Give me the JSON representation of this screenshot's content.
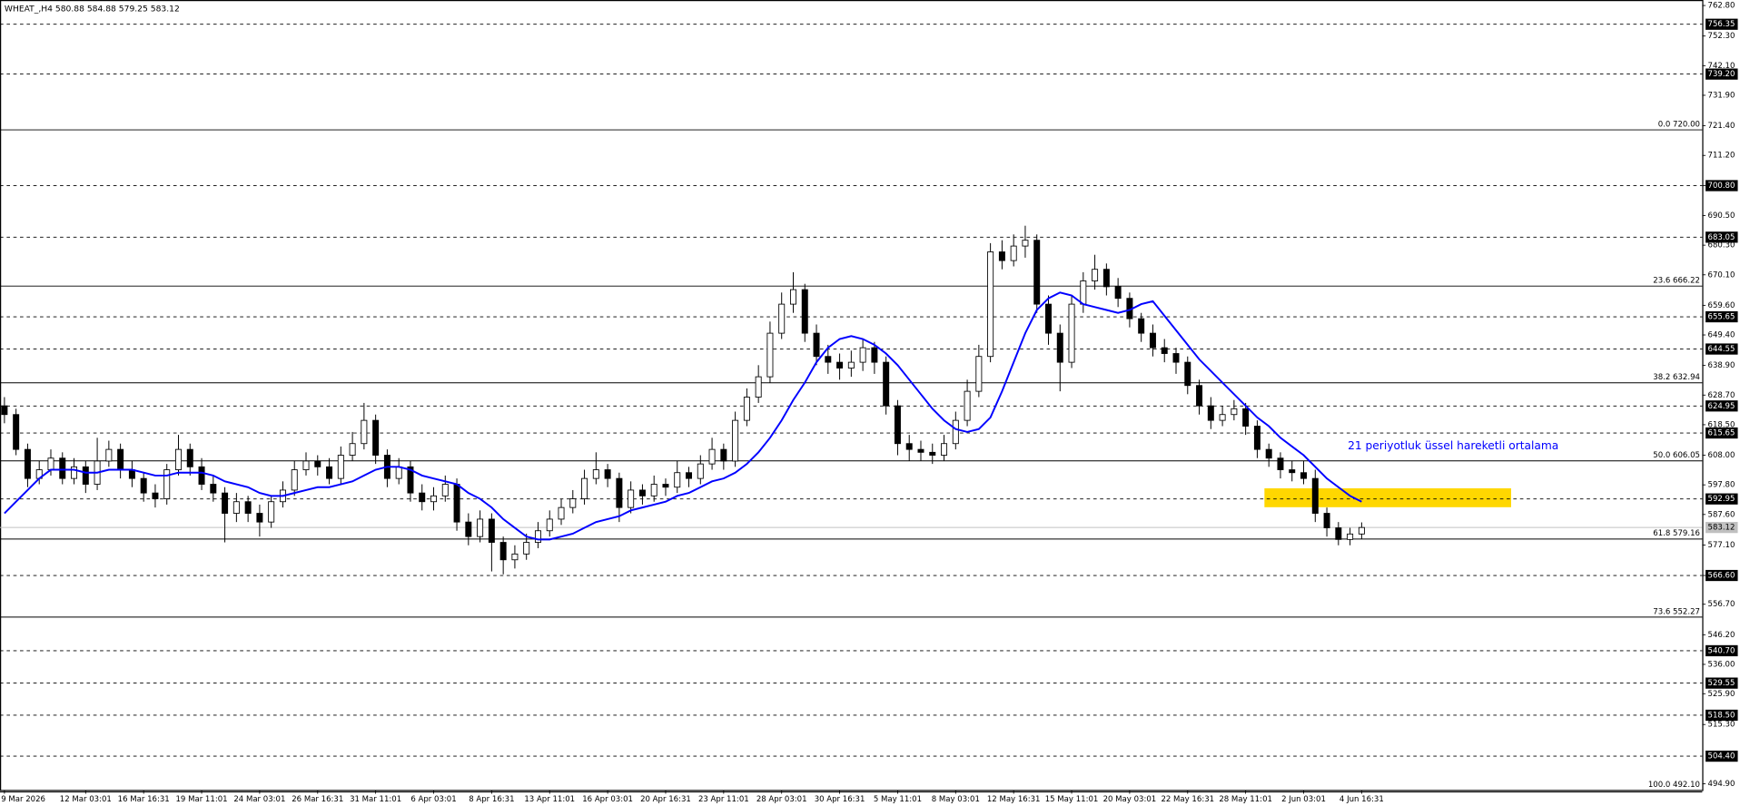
{
  "chart_data": {
    "type": "candlestick",
    "title": "WHEAT_,H4 580.88 584.88 579.25 583.12",
    "categories": [
      "9 Mar 2026",
      null,
      null,
      null,
      null,
      null,
      null,
      "12 Mar 03:01",
      null,
      null,
      null,
      null,
      "16 Mar 16:31",
      null,
      null,
      null,
      null,
      "19 Mar 11:01",
      null,
      null,
      null,
      null,
      "24 Mar 03:01",
      null,
      null,
      null,
      null,
      "26 Mar 16:31",
      null,
      null,
      null,
      null,
      "31 Mar 11:01",
      null,
      null,
      null,
      null,
      "6 Apr 03:01",
      null,
      null,
      null,
      null,
      "8 Apr 16:31",
      null,
      null,
      null,
      null,
      "13 Apr 11:01",
      null,
      null,
      null,
      null,
      "16 Apr 03:01",
      null,
      null,
      null,
      null,
      "20 Apr 16:31",
      null,
      null,
      null,
      null,
      "23 Apr 11:01",
      null,
      null,
      null,
      null,
      "28 Apr 03:01",
      null,
      null,
      null,
      null,
      "30 Apr 16:31",
      null,
      null,
      null,
      null,
      "5 May 11:01",
      null,
      null,
      null,
      null,
      "8 May 03:01",
      null,
      null,
      null,
      null,
      "12 May 16:31",
      null,
      null,
      null,
      null,
      "15 May 11:01",
      null,
      null,
      null,
      null,
      "20 May 03:01",
      null,
      null,
      null,
      null,
      "22 May 16:31",
      null,
      null,
      null,
      null,
      "28 May 11:01",
      null,
      null,
      null,
      null,
      "2 Jun 03:01",
      null,
      null,
      null,
      null,
      "4 Jun 16:31"
    ],
    "open": [
      625,
      622,
      610,
      600,
      603,
      607,
      600,
      604,
      598,
      606,
      610,
      603,
      600,
      595,
      593,
      603,
      610,
      604,
      598,
      595,
      588,
      592,
      588,
      585,
      592,
      596,
      603,
      606,
      604,
      600,
      608,
      612,
      620,
      608,
      600,
      604,
      595,
      592,
      594,
      598,
      585,
      580,
      586,
      578,
      572,
      574,
      578,
      582,
      586,
      590,
      593,
      600,
      603,
      600,
      590,
      596,
      594,
      598,
      597,
      602,
      600,
      605,
      610,
      606,
      620,
      628,
      635,
      650,
      660,
      665,
      650,
      642,
      640,
      638,
      640,
      645,
      640,
      625,
      612,
      610,
      609,
      608,
      612,
      620,
      630,
      642,
      678,
      675,
      680,
      682,
      660,
      650,
      640,
      660,
      668,
      672,
      666,
      662,
      655,
      650,
      645,
      643,
      640,
      632,
      625,
      620,
      622,
      624,
      618,
      610,
      607,
      603,
      602,
      600,
      588,
      583,
      579,
      580.88
    ],
    "high": [
      628,
      624,
      612,
      606,
      610,
      609,
      607,
      606,
      614,
      613,
      612,
      606,
      602,
      598,
      605,
      615,
      612,
      607,
      601,
      597,
      595,
      594,
      591,
      594,
      599,
      606,
      609,
      608,
      607,
      611,
      616,
      626,
      622,
      610,
      607,
      606,
      598,
      597,
      601,
      600,
      588,
      589,
      588,
      580,
      577,
      581,
      585,
      589,
      593,
      596,
      603,
      609,
      605,
      602,
      599,
      598,
      601,
      600,
      606,
      604,
      608,
      614,
      612,
      623,
      631,
      639,
      654,
      664,
      671,
      667,
      653,
      646,
      643,
      644,
      648,
      647,
      642,
      627,
      615,
      613,
      612,
      615,
      623,
      634,
      646,
      681,
      682,
      684,
      687,
      684,
      663,
      653,
      663,
      671,
      677,
      674,
      669,
      664,
      657,
      653,
      648,
      645,
      642,
      634,
      628,
      625,
      627,
      626,
      620,
      612,
      609,
      606,
      606,
      603,
      590,
      585,
      583,
      584.88
    ],
    "low": [
      619,
      608,
      597,
      598,
      601,
      598,
      598,
      595,
      596,
      604,
      600,
      597,
      592,
      590,
      591,
      601,
      601,
      596,
      592,
      578,
      585,
      585,
      580,
      583,
      590,
      594,
      601,
      601,
      598,
      598,
      606,
      610,
      605,
      597,
      598,
      592,
      589,
      589,
      592,
      582,
      577,
      578,
      568,
      567,
      569,
      572,
      576,
      580,
      584,
      588,
      591,
      598,
      597,
      585,
      588,
      591,
      592,
      594,
      595,
      597,
      598,
      603,
      603,
      604,
      618,
      626,
      633,
      648,
      657,
      647,
      639,
      636,
      634,
      635,
      637,
      636,
      622,
      608,
      606,
      606,
      605,
      606,
      610,
      618,
      628,
      640,
      672,
      673,
      676,
      657,
      646,
      630,
      638,
      657,
      665,
      663,
      659,
      652,
      647,
      642,
      640,
      636,
      629,
      622,
      617,
      618,
      620,
      615,
      607,
      604,
      600,
      599,
      598,
      585,
      580,
      577,
      577,
      579.25
    ],
    "close": [
      622,
      610,
      600,
      603,
      607,
      600,
      604,
      598,
      606,
      610,
      603,
      600,
      595,
      593,
      603,
      610,
      604,
      598,
      595,
      588,
      592,
      588,
      585,
      592,
      596,
      603,
      606,
      604,
      600,
      608,
      612,
      620,
      608,
      600,
      604,
      595,
      592,
      594,
      598,
      585,
      580,
      586,
      578,
      572,
      574,
      578,
      582,
      586,
      590,
      593,
      600,
      603,
      600,
      590,
      596,
      594,
      598,
      597,
      602,
      600,
      605,
      610,
      606,
      620,
      628,
      635,
      650,
      660,
      665,
      650,
      642,
      640,
      638,
      640,
      645,
      640,
      625,
      612,
      610,
      609,
      608,
      612,
      620,
      630,
      642,
      678,
      675,
      680,
      682,
      660,
      650,
      640,
      660,
      668,
      672,
      666,
      662,
      655,
      650,
      645,
      643,
      640,
      632,
      625,
      620,
      622,
      624,
      618,
      610,
      607,
      603,
      602,
      600,
      588,
      583,
      579,
      580.88,
      583.12
    ],
    "up_color": "#ffffff",
    "down_color": "#000000",
    "ema": {
      "color": "#0000ff",
      "values": [
        588,
        592,
        596,
        600,
        603,
        603,
        603,
        602,
        602,
        603,
        603,
        603,
        602,
        601,
        601,
        602,
        602,
        602,
        601,
        599,
        598,
        597,
        595,
        594,
        594,
        595,
        596,
        597,
        597,
        598,
        599,
        601,
        603,
        604,
        604,
        603,
        601,
        600,
        599,
        598,
        595,
        593,
        590,
        586,
        583,
        580,
        579,
        579,
        580,
        581,
        583,
        585,
        586,
        587,
        589,
        590,
        591,
        592,
        594,
        595,
        597,
        599,
        600,
        602,
        605,
        609,
        614,
        620,
        627,
        633,
        640,
        645,
        648,
        649,
        648,
        646,
        643,
        639,
        634,
        629,
        624,
        620,
        617,
        616,
        617,
        621,
        630,
        640,
        650,
        658,
        662,
        664,
        663,
        660,
        659,
        658,
        657,
        658,
        660,
        661,
        656,
        651,
        646,
        641,
        637,
        633,
        629,
        625,
        621,
        618,
        614,
        611,
        608,
        604,
        600,
        597,
        594,
        592
      ]
    },
    "ylim": [
      492.6,
      764.7
    ],
    "yticks": [
      {
        "value": 762.8,
        "label": "762.80"
      },
      {
        "value": 752.3,
        "label": "752.30"
      },
      {
        "value": 742.1,
        "label": "742.10"
      },
      {
        "value": 731.9,
        "label": "731.90"
      },
      {
        "value": 721.4,
        "label": "721.40"
      },
      {
        "value": 711.2,
        "label": "711.20"
      },
      {
        "value": 700.8,
        "label": "700.80"
      },
      {
        "value": 690.5,
        "label": "690.50"
      },
      {
        "value": 680.3,
        "label": "680.30"
      },
      {
        "value": 670.1,
        "label": "670.10"
      },
      {
        "value": 659.6,
        "label": "659.60"
      },
      {
        "value": 649.4,
        "label": "649.40"
      },
      {
        "value": 638.9,
        "label": "638.90"
      },
      {
        "value": 628.7,
        "label": "628.70"
      },
      {
        "value": 618.5,
        "label": "618.50"
      },
      {
        "value": 608,
        "label": "608.00"
      },
      {
        "value": 597.8,
        "label": "597.80"
      },
      {
        "value": 587.6,
        "label": "587.60"
      },
      {
        "value": 577.1,
        "label": "577.10"
      },
      {
        "value": 566.6,
        "label": "566.60"
      },
      {
        "value": 556.7,
        "label": "556.70"
      },
      {
        "value": 546.2,
        "label": "546.20"
      },
      {
        "value": 536,
        "label": "536.00"
      },
      {
        "value": 525.9,
        "label": "525.90"
      },
      {
        "value": 515.3,
        "label": "515.30"
      },
      {
        "value": 494.9,
        "label": "494.90"
      }
    ],
    "levels": [
      {
        "value": 756.35,
        "label": "756.35"
      },
      {
        "value": 739.2,
        "label": "739.20"
      },
      {
        "value": 700.8,
        "label": "700.80"
      },
      {
        "value": 683.05,
        "label": "683.05"
      },
      {
        "value": 655.65,
        "label": "655.65"
      },
      {
        "value": 644.55,
        "label": "644.55"
      },
      {
        "value": 624.95,
        "label": "624.95"
      },
      {
        "value": 615.65,
        "label": "615.65"
      },
      {
        "value": 592.95,
        "label": "592.95"
      },
      {
        "value": 566.6,
        "label": "566.60"
      },
      {
        "value": 540.7,
        "label": "540.70"
      },
      {
        "value": 529.55,
        "label": "529.55"
      },
      {
        "value": 518.5,
        "label": "518.50"
      },
      {
        "value": 504.4,
        "label": "504.40"
      }
    ],
    "fib_levels": [
      {
        "value": 720,
        "label": "0.0 720.00"
      },
      {
        "value": 666.22,
        "label": "23.6 666.22"
      },
      {
        "value": 632.94,
        "label": "38.2 632.94"
      },
      {
        "value": 606.05,
        "label": "50.0 606.05"
      },
      {
        "value": 579.16,
        "label": "61.8 579.16"
      },
      {
        "value": 552.27,
        "label": "73.6 552.27"
      },
      {
        "value": 492.1,
        "label": "100.0 492.10"
      }
    ],
    "current_price": 583.12,
    "zone": {
      "low": 590.1,
      "high": 596.6,
      "color": "#ffd700"
    },
    "annotation": {
      "text": "21 periyotluk üssel hareketli ortalama",
      "color": "#0000ff"
    }
  }
}
